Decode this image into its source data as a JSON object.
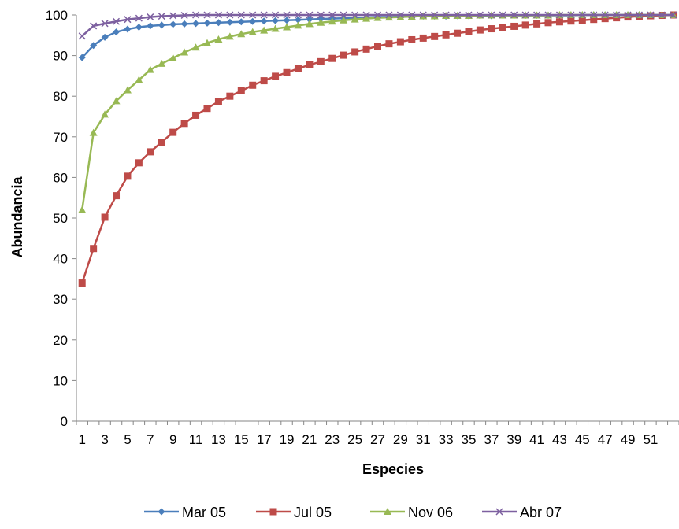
{
  "chart_data": {
    "type": "line",
    "xlabel": "Especies",
    "ylabel": "Abundancia",
    "ylim": [
      0,
      100
    ],
    "yticks": [
      "0",
      "10",
      "20",
      "30",
      "40",
      "50",
      "60",
      "70",
      "80",
      "90",
      "100"
    ],
    "x": [
      1,
      2,
      3,
      4,
      5,
      6,
      7,
      8,
      9,
      10,
      11,
      12,
      13,
      14,
      15,
      16,
      17,
      18,
      19,
      20,
      21,
      22,
      23,
      24,
      25,
      26,
      27,
      28,
      29,
      30,
      31,
      32,
      33,
      34,
      35,
      36,
      37,
      38,
      39,
      40,
      41,
      42,
      43,
      44,
      45,
      46,
      47,
      48,
      49,
      50,
      51,
      52,
      53
    ],
    "xtick_labels": [
      "1",
      "3",
      "5",
      "7",
      "9",
      "11",
      "13",
      "15",
      "17",
      "19",
      "21",
      "23",
      "25",
      "27",
      "29",
      "31",
      "33",
      "35",
      "37",
      "39",
      "41",
      "43",
      "45",
      "47",
      "49",
      "51"
    ],
    "grid": false,
    "legend_position": "bottom",
    "series": [
      {
        "name": "Mar 05",
        "color": "#4A7EBB",
        "marker": "diamond",
        "values": [
          89.5,
          92.5,
          94.5,
          95.8,
          96.5,
          97.0,
          97.3,
          97.5,
          97.7,
          97.8,
          97.9,
          98.0,
          98.1,
          98.2,
          98.3,
          98.4,
          98.5,
          98.6,
          98.7,
          98.8,
          98.9,
          99.0,
          99.1,
          99.2,
          99.3,
          99.4,
          99.5,
          99.5,
          99.6,
          99.6,
          99.7,
          99.7,
          99.7,
          99.8,
          99.8,
          99.8,
          99.8,
          99.9,
          99.9,
          99.9,
          99.9,
          99.9,
          99.9,
          99.9,
          100,
          100,
          100,
          100,
          100,
          100,
          100,
          100,
          100
        ]
      },
      {
        "name": "Jul 05",
        "color": "#BE4B48",
        "marker": "square",
        "values": [
          34.0,
          42.5,
          50.2,
          55.5,
          60.3,
          63.6,
          66.3,
          68.7,
          71.1,
          73.3,
          75.3,
          77.0,
          78.7,
          80.0,
          81.3,
          82.7,
          83.8,
          84.9,
          85.8,
          86.8,
          87.7,
          88.5,
          89.3,
          90.1,
          90.9,
          91.6,
          92.3,
          92.9,
          93.4,
          93.9,
          94.3,
          94.7,
          95.1,
          95.5,
          95.9,
          96.3,
          96.6,
          96.9,
          97.2,
          97.5,
          97.8,
          98.1,
          98.3,
          98.5,
          98.7,
          98.9,
          99.1,
          99.3,
          99.5,
          99.7,
          99.8,
          99.9,
          100
        ]
      },
      {
        "name": "Nov 06",
        "color": "#98B954",
        "marker": "triangle",
        "values": [
          52.0,
          71.0,
          75.5,
          78.8,
          81.5,
          84.0,
          86.5,
          88.0,
          89.4,
          90.8,
          92.0,
          93.1,
          94.0,
          94.7,
          95.3,
          95.8,
          96.2,
          96.6,
          97.0,
          97.4,
          97.8,
          98.1,
          98.4,
          98.7,
          98.9,
          99.1,
          99.3,
          99.4,
          99.5,
          99.6,
          99.7,
          99.7,
          99.8,
          99.8,
          99.8,
          99.9,
          99.9,
          99.9,
          99.9,
          99.9,
          99.9,
          99.9,
          100,
          100,
          100,
          100,
          100,
          100,
          100,
          100,
          100,
          100,
          100
        ]
      },
      {
        "name": "Abr 07",
        "color": "#7D60A0",
        "marker": "x",
        "values": [
          94.8,
          97.3,
          97.9,
          98.4,
          98.9,
          99.2,
          99.5,
          99.7,
          99.8,
          99.9,
          100,
          100,
          100,
          100,
          100,
          100,
          100,
          100,
          100,
          100,
          100,
          100,
          100,
          100,
          100,
          100,
          100,
          100,
          100,
          100,
          100,
          100,
          100,
          100,
          100,
          100,
          100,
          100,
          100,
          100,
          100,
          100,
          100,
          100,
          100,
          100,
          100,
          100,
          100,
          100,
          100,
          100,
          100
        ]
      }
    ]
  }
}
